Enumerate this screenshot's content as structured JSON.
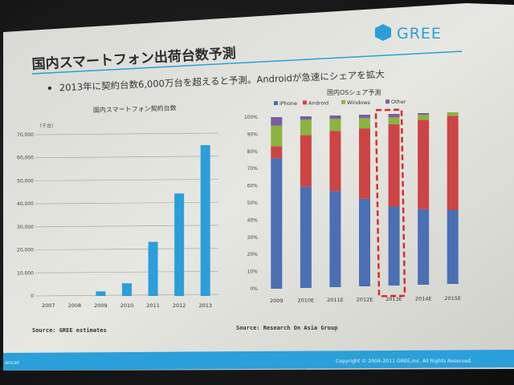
{
  "slide": {
    "title": "国内スマートフォン出荷台数予測",
    "bullet": "2013年に契約台数6,000万台を超えると予測。Androidが急速にシェアを拡大",
    "logo_text": "GREE",
    "footer_left": "ancer",
    "copyright": "Copyright © 2004-2011 GREE,Inc. All Rights Reserved.",
    "colors": {
      "accent": "#2b9fd9",
      "footer": "#2b9fd9",
      "title": "#2c2c2c"
    }
  },
  "chart_data": [
    {
      "type": "bar",
      "title": "国内スマートフォン契約台数",
      "ylabel": "（千台）",
      "categories": [
        "2007",
        "2008",
        "2009",
        "2010",
        "2011",
        "2012",
        "2013"
      ],
      "values": [
        0,
        0,
        2000,
        5500,
        23500,
        44500,
        65500
      ],
      "yticks": [
        "0",
        "10,000",
        "20,000",
        "30,000",
        "40,000",
        "50,000",
        "60,000",
        "70,000"
      ],
      "ylim": [
        0,
        70000
      ],
      "grid": true,
      "source": "Source: GREE estimates",
      "color": "#2b9fd9"
    },
    {
      "type": "bar",
      "stacked": true,
      "title": "国内OSシェア予測",
      "categories": [
        "2009",
        "2010E",
        "2011E",
        "2012E",
        "2013E",
        "2014E",
        "2015E"
      ],
      "series": [
        {
          "name": "iPhone",
          "color": "#4a6fb5",
          "values": [
            76,
            59,
            56,
            51,
            46,
            44,
            43
          ]
        },
        {
          "name": "Android",
          "color": "#cc4444",
          "values": [
            7,
            30,
            35,
            41,
            48,
            52,
            55
          ]
        },
        {
          "name": "Windows",
          "color": "#8ab43f",
          "values": [
            12,
            9,
            7,
            6,
            4,
            3,
            2
          ]
        },
        {
          "name": "Other",
          "color": "#7c5e9e",
          "values": [
            5,
            2,
            2,
            2,
            2,
            1,
            0
          ]
        }
      ],
      "legend": [
        "iPhone",
        "Android",
        "Windows",
        "Other"
      ],
      "yticks": [
        "0%",
        "10%",
        "20%",
        "30%",
        "40%",
        "50%",
        "60%",
        "70%",
        "80%",
        "90%",
        "100%"
      ],
      "ylim": [
        0,
        100
      ],
      "highlight_category": "2013E",
      "grid": true,
      "source": "Source: Research On Asia Group"
    }
  ]
}
